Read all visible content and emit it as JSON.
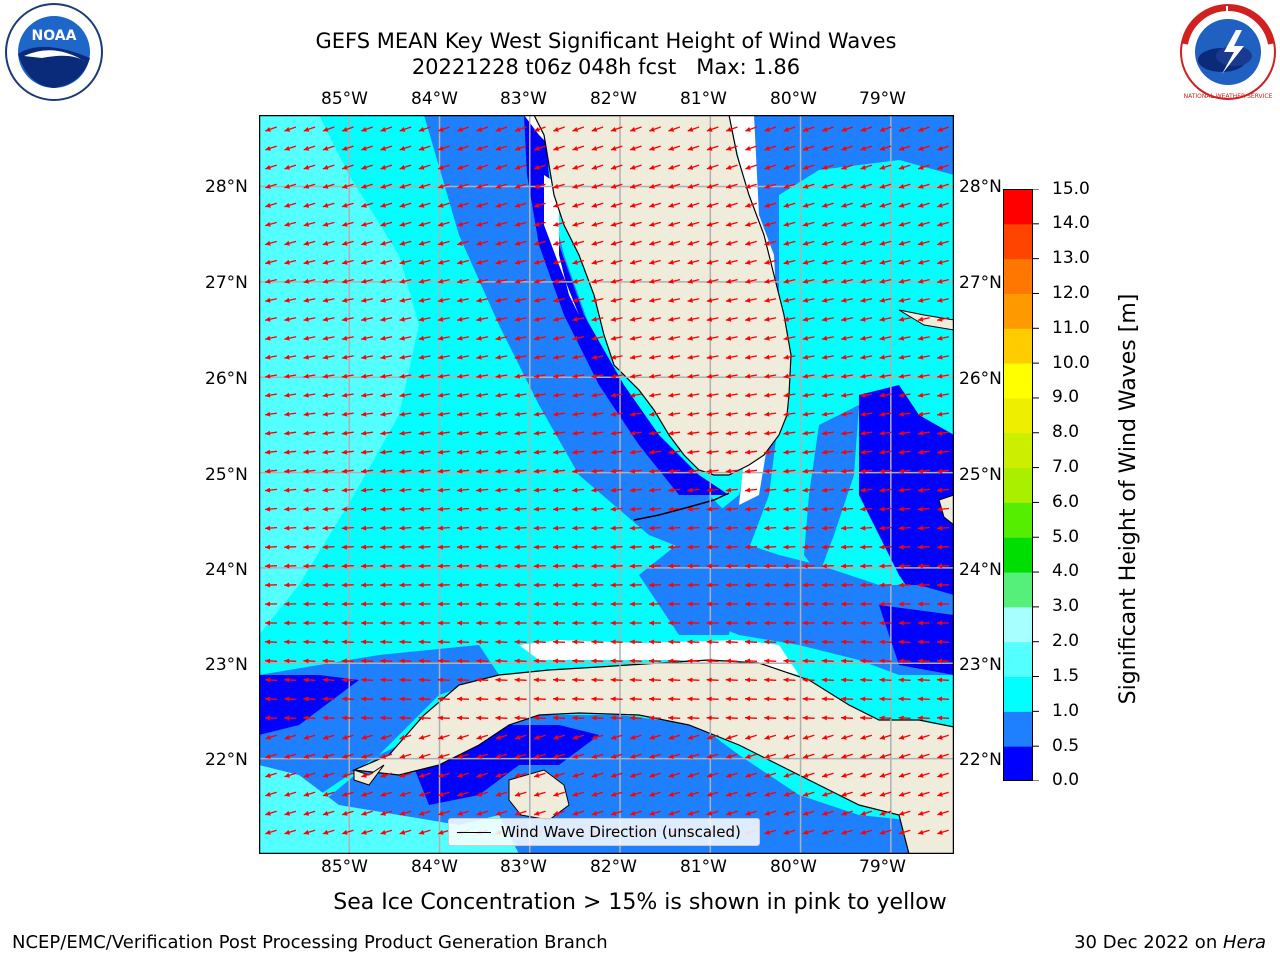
{
  "title": {
    "line1": "GEFS MEAN Key West Significant Height of Wind Waves",
    "line2": "20221228 t06z 048h fcst   Max: 1.86"
  },
  "map": {
    "lon_ticks": [
      "85°W",
      "84°W",
      "83°W",
      "82°W",
      "81°W",
      "80°W",
      "79°W"
    ],
    "lat_ticks": [
      "28°N",
      "27°N",
      "26°N",
      "25°N",
      "24°N",
      "23°N",
      "22°N"
    ],
    "extent": {
      "lon_min": -86.0,
      "lon_max": -78.3,
      "lat_min": 21.0,
      "lat_max": 28.75
    },
    "land_color": "#efecdc",
    "arrow_color": "#ff0000",
    "legend_label": "Wind Wave Direction (unscaled)"
  },
  "colorbar": {
    "label": "Significant Height of Wind Waves [m]",
    "ticks": [
      "0.0",
      "0.5",
      "1.0",
      "1.5",
      "2.0",
      "3.0",
      "4.0",
      "5.0",
      "6.0",
      "7.0",
      "8.0",
      "9.0",
      "10.0",
      "11.0",
      "12.0",
      "13.0",
      "14.0",
      "15.0"
    ],
    "colors": [
      "#0000ff",
      "#1e7fff",
      "#00ffff",
      "#54ffff",
      "#a8ffff",
      "#55f07a",
      "#00dd00",
      "#55ee00",
      "#aaee00",
      "#ccee00",
      "#eeee00",
      "#ffff00",
      "#ffcc00",
      "#ff9900",
      "#ff7700",
      "#ff4400",
      "#ff0000"
    ]
  },
  "logos": {
    "noaa_text": "NOAA",
    "nws_text": "NATIONAL WEATHER SERVICE"
  },
  "note": "Sea Ice Concentration > 15% is shown in pink to yellow",
  "footer": {
    "left": "NCEP/EMC/Verification Post Processing Product Generation Branch",
    "right_prefix": "30 Dec 2022 on ",
    "right_host": "Hera"
  }
}
